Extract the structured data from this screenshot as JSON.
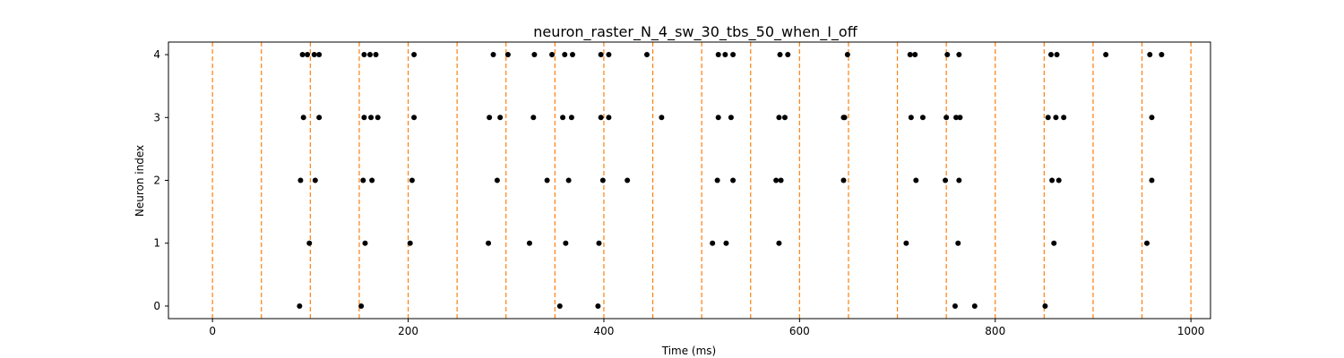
{
  "chart_data": {
    "type": "scatter",
    "title": "neuron_raster_N_4_sw_30_tbs_50_when_I_off",
    "xlabel": "Time (ms)",
    "ylabel": "Neuron index",
    "xlim": [
      -45,
      1020
    ],
    "ylim": [
      -0.2,
      4.2
    ],
    "xticks": [
      0,
      200,
      400,
      600,
      800,
      1000
    ],
    "xtick_labels": [
      "0",
      "200",
      "400",
      "600",
      "800",
      "1000"
    ],
    "yticks": [
      0,
      1,
      2,
      3,
      4
    ],
    "ytick_labels": [
      "0",
      "1",
      "2",
      "3",
      "4"
    ],
    "grid": false,
    "marker_color": "#000000",
    "boundary_color": "#ff7f0e",
    "time_bin_boundaries": [
      0,
      50,
      100,
      150,
      200,
      250,
      300,
      350,
      400,
      450,
      500,
      550,
      600,
      650,
      700,
      750,
      800,
      850,
      900,
      950,
      1000
    ],
    "spikes": [
      {
        "neuron": 0,
        "times": [
          89,
          152,
          355,
          394,
          759,
          779,
          851
        ]
      },
      {
        "neuron": 1,
        "times": [
          99,
          156,
          202,
          282,
          324,
          361,
          395,
          511,
          525,
          579,
          709,
          762,
          860,
          955
        ]
      },
      {
        "neuron": 2,
        "times": [
          90,
          105,
          154,
          163,
          204,
          291,
          342,
          364,
          399,
          424,
          516,
          532,
          576,
          581,
          645,
          719,
          749,
          763,
          858,
          865,
          960
        ]
      },
      {
        "neuron": 3,
        "times": [
          93,
          109,
          155,
          162,
          169,
          206,
          283,
          294,
          328,
          358,
          367,
          397,
          405,
          459,
          517,
          530,
          579,
          585,
          645,
          646,
          714,
          726,
          750,
          760,
          764,
          854,
          862,
          870,
          960
        ]
      },
      {
        "neuron": 4,
        "times": [
          92,
          97,
          104,
          109,
          155,
          161,
          167,
          206,
          287,
          302,
          329,
          347,
          360,
          368,
          397,
          405,
          444,
          517,
          524,
          532,
          580,
          588,
          649,
          713,
          718,
          751,
          763,
          857,
          863,
          913,
          958,
          970
        ]
      }
    ]
  }
}
